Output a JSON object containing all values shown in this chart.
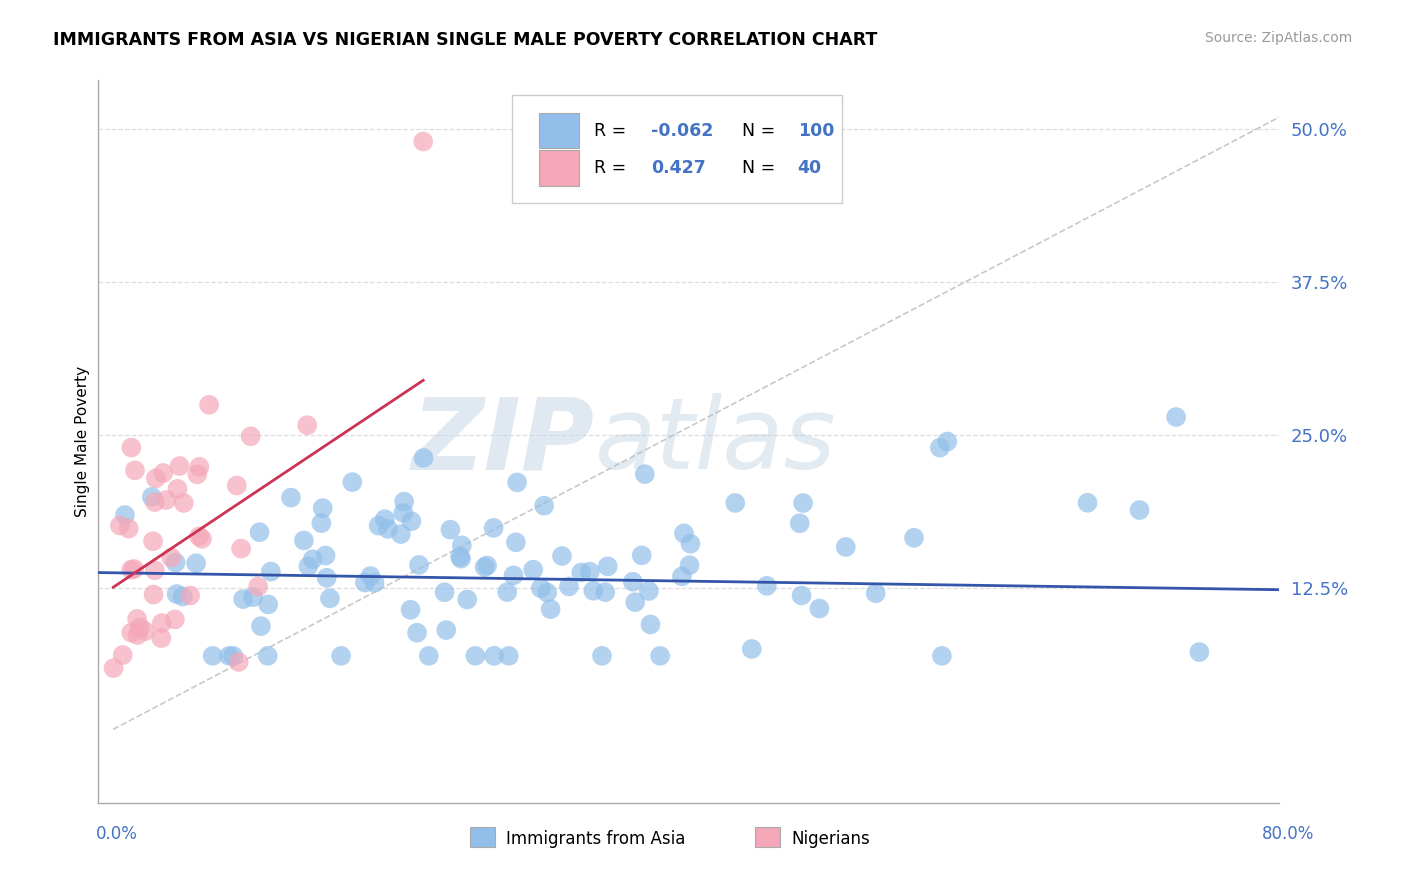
{
  "title": "IMMIGRANTS FROM ASIA VS NIGERIAN SINGLE MALE POVERTY CORRELATION CHART",
  "source": "Source: ZipAtlas.com",
  "ylabel": "Single Male Poverty",
  "legend_label_blue": "Immigrants from Asia",
  "legend_label_pink": "Nigerians",
  "R_blue": -0.062,
  "N_blue": 100,
  "R_pink": 0.427,
  "N_pink": 40,
  "blue_color": "#92BFEA",
  "pink_color": "#F4A7B9",
  "trend_blue": "#3355AA",
  "trend_pink": "#CC3355",
  "watermark_zip": "ZIP",
  "watermark_atlas": "atlas",
  "ytick_vals": [
    0.0,
    0.125,
    0.25,
    0.375,
    0.5
  ],
  "ytick_labels": [
    "",
    "12.5%",
    "25.0%",
    "37.5%",
    "50.0%"
  ],
  "xlim": [
    0.0,
    0.8
  ],
  "ylim": [
    -0.05,
    0.54
  ],
  "grid_color": "#DDDDDD",
  "spine_color": "#AAAAAA"
}
